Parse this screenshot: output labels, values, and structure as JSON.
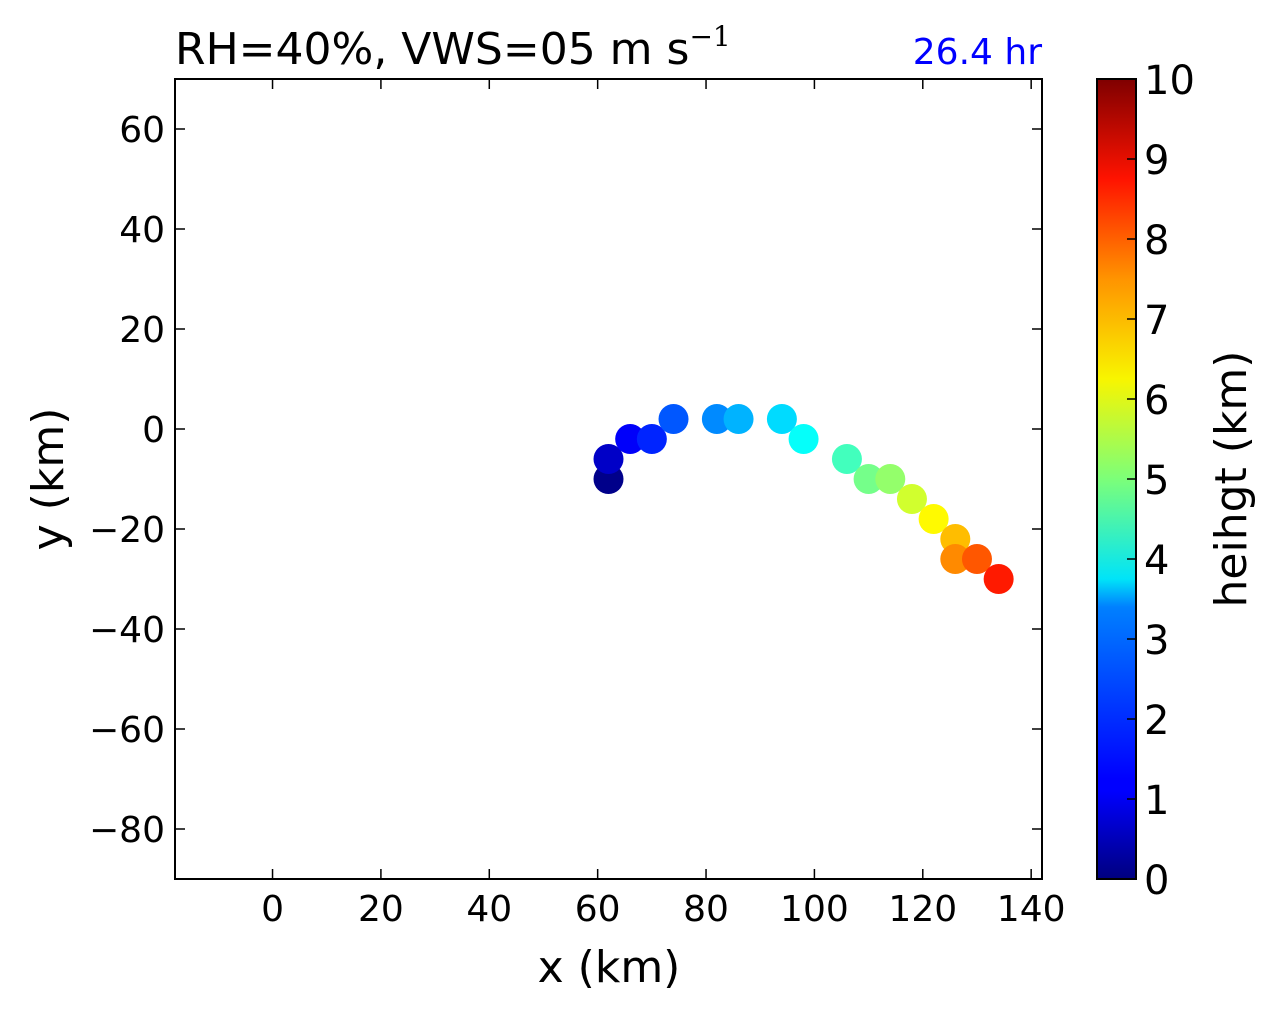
{
  "chart_data": {
    "type": "scatter",
    "title": "RH=40%, VWS=05 m s",
    "title_superscript": "−1",
    "time_label": "26.4 hr",
    "time_label_color": "#0000ff",
    "xlabel": "x (km)",
    "ylabel": "y (km)",
    "xlim": [
      -18,
      142
    ],
    "ylim": [
      -90,
      70
    ],
    "x_ticks": [
      0,
      20,
      40,
      60,
      80,
      100,
      120,
      140
    ],
    "x_tick_labels": [
      "0",
      "20",
      "40",
      "60",
      "80",
      "100",
      "120",
      "140"
    ],
    "y_ticks": [
      -80,
      -60,
      -40,
      -20,
      0,
      20,
      40,
      60
    ],
    "y_tick_labels": [
      "−80",
      "−60",
      "−40",
      "−20",
      "0",
      "20",
      "40",
      "60"
    ],
    "grid": false,
    "colorbar": {
      "label": "heihgt (km)",
      "range": [
        0,
        10
      ],
      "ticks": [
        0,
        1,
        2,
        3,
        4,
        5,
        6,
        7,
        8,
        9,
        10
      ],
      "tick_labels": [
        "0",
        "1",
        "2",
        "3",
        "4",
        "5",
        "6",
        "7",
        "8",
        "9",
        "10"
      ],
      "colormap": "jet"
    },
    "points": [
      {
        "x": 62,
        "y": -10,
        "height": 0.1
      },
      {
        "x": 62,
        "y": -6,
        "height": 0.7
      },
      {
        "x": 66,
        "y": -2,
        "height": 1.2
      },
      {
        "x": 70,
        "y": -2,
        "height": 1.6
      },
      {
        "x": 74,
        "y": 2,
        "height": 2.1
      },
      {
        "x": 82,
        "y": 2,
        "height": 2.6
      },
      {
        "x": 86,
        "y": 2,
        "height": 3.0
      },
      {
        "x": 94,
        "y": 2,
        "height": 3.4
      },
      {
        "x": 98,
        "y": -2,
        "height": 3.8
      },
      {
        "x": 106,
        "y": -6,
        "height": 4.4
      },
      {
        "x": 110,
        "y": -10,
        "height": 4.9
      },
      {
        "x": 114,
        "y": -10,
        "height": 5.2
      },
      {
        "x": 118,
        "y": -14,
        "height": 5.8
      },
      {
        "x": 122,
        "y": -18,
        "height": 6.3
      },
      {
        "x": 126,
        "y": -22,
        "height": 6.9
      },
      {
        "x": 126,
        "y": -26,
        "height": 7.4
      },
      {
        "x": 130,
        "y": -26,
        "height": 7.9
      },
      {
        "x": 134,
        "y": -30,
        "height": 8.5
      }
    ]
  }
}
